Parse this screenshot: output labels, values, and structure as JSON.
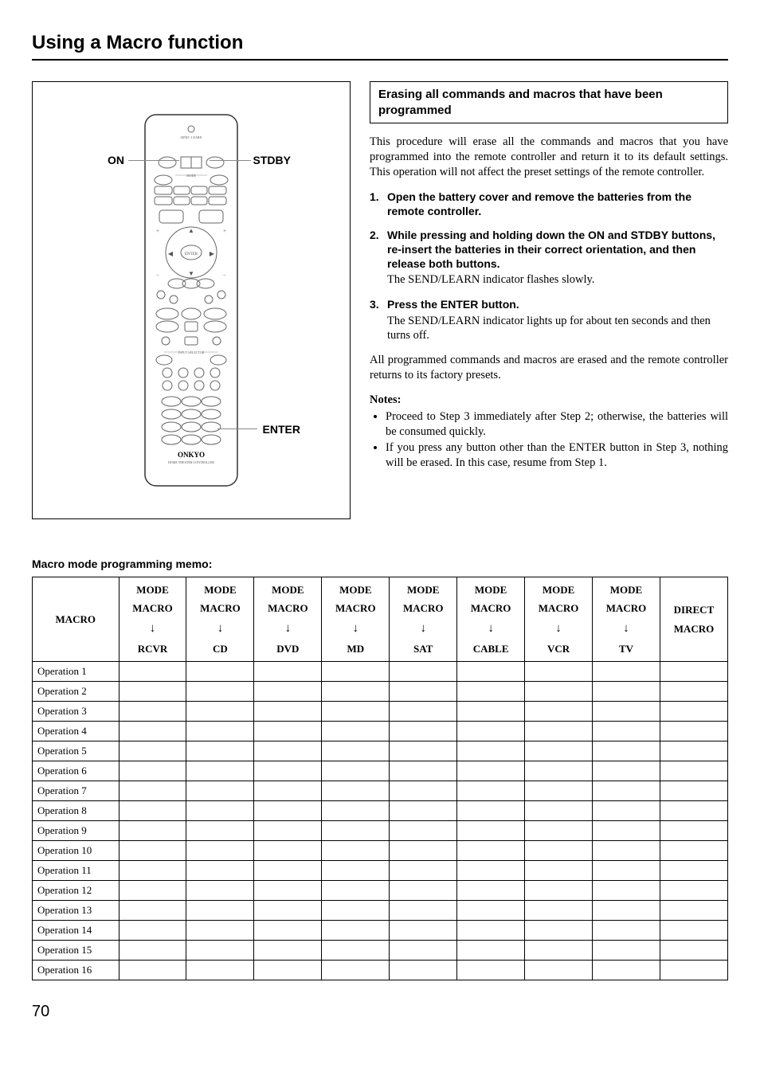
{
  "title": "Using a Macro function",
  "callouts": {
    "on": "ON",
    "stdby": "STDBY",
    "enter": "ENTER"
  },
  "brand": "ONKYO",
  "erase": {
    "heading": "Erasing all commands and macros that have been programmed",
    "intro": "This procedure will erase all the commands and macros that you have programmed into the remote controller and return it to its default settings. This operation will not affect the preset settings of the remote controller.",
    "steps": [
      {
        "num": "1.",
        "head": "Open the battery cover and remove the batteries from the remote controller.",
        "sub": ""
      },
      {
        "num": "2.",
        "head": "While pressing and holding down the ON and STDBY buttons, re-insert the batteries in their correct orientation, and then release both buttons.",
        "sub": "The SEND/LEARN indicator flashes slowly."
      },
      {
        "num": "3.",
        "head": "Press the ENTER button.",
        "sub": "The SEND/LEARN indicator lights up for about ten seconds and then turns off."
      }
    ],
    "closing": "All programmed commands and macros are erased and the remote controller returns to its factory presets.",
    "notes_h": "Notes:",
    "notes": [
      "Proceed to Step 3 immediately after Step 2; otherwise, the batteries will be consumed quickly.",
      "If you press any button other than the ENTER button in Step 3, nothing will be erased. In this case, resume from Step 1."
    ]
  },
  "memo": {
    "title": "Macro mode programming memo:",
    "corner": "MACRO",
    "head_top": "MODE MACRO",
    "arrow": "↓",
    "direct": "DIRECT MACRO",
    "devices": [
      "RCVR",
      "CD",
      "DVD",
      "MD",
      "SAT",
      "CABLE",
      "VCR",
      "TV"
    ],
    "rows": [
      "Operation 1",
      "Operation 2",
      "Operation 3",
      "Operation 4",
      "Operation 5",
      "Operation 6",
      "Operation 7",
      "Operation 8",
      "Operation 9",
      "Operation 10",
      "Operation 11",
      "Operation 12",
      "Operation 13",
      "Operation 14",
      "Operation 15",
      "Operation 16"
    ]
  },
  "page": "70"
}
